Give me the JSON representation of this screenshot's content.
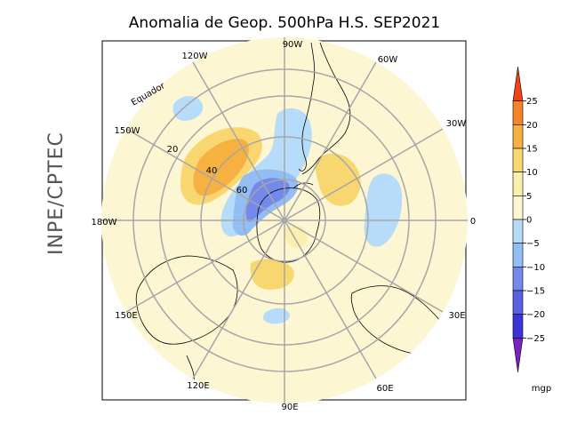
{
  "title": "Anomalia de Geop. 500hPa H.S. SEP2021",
  "side_label": "INPE/CPTEC",
  "map": {
    "projection": "south-polar-stereographic",
    "longitude_labels": [
      {
        "text": "90W",
        "lon": -90
      },
      {
        "text": "60W",
        "lon": -60
      },
      {
        "text": "30W",
        "lon": -30
      },
      {
        "text": "0",
        "lon": 0
      },
      {
        "text": "30E",
        "lon": 30
      },
      {
        "text": "60E",
        "lon": 60
      },
      {
        "text": "90E",
        "lon": 90
      },
      {
        "text": "120E",
        "lon": 120
      },
      {
        "text": "150E",
        "lon": 150
      },
      {
        "text": "180W",
        "lon": 180
      },
      {
        "text": "150W",
        "lon": -150
      },
      {
        "text": "120W",
        "lon": -120
      }
    ],
    "latitude_labels": [
      {
        "text": "20",
        "lat": -20
      },
      {
        "text": "40",
        "lat": -40
      },
      {
        "text": "60",
        "lat": -60
      }
    ],
    "equator_label": "Equador"
  },
  "colorbar": {
    "ticks": [
      "25",
      "20",
      "15",
      "10",
      "5",
      "0",
      "−5",
      "−10",
      "−15",
      "−20",
      "−25"
    ],
    "units": "mgp",
    "colors": [
      "#f04418",
      "#f5832a",
      "#f6b140",
      "#f9d770",
      "#fbefad",
      "#fdf6d3",
      "#b6dcfa",
      "#92bef5",
      "#7489eb",
      "#5a5fe3",
      "#4032d9",
      "#7a22bf"
    ]
  }
}
